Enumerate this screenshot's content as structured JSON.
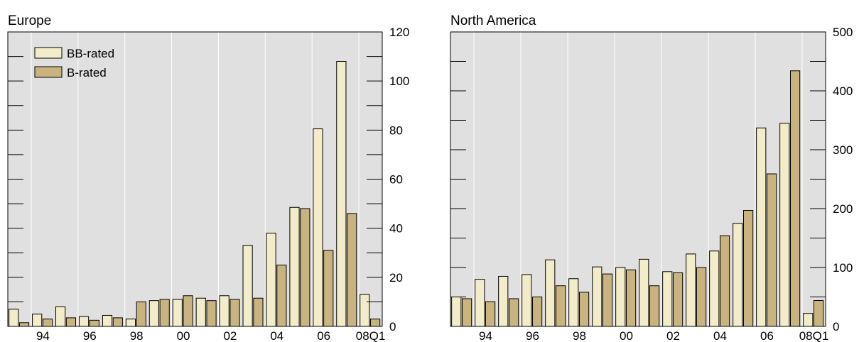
{
  "colors": {
    "bb": "#f2ecc9",
    "b": "#c9b47f",
    "plot_bg": "#e0e0e0",
    "grid": "#ffffff",
    "frame": "#000000"
  },
  "legend": {
    "bb_label": "BB-rated",
    "b_label": "B-rated"
  },
  "chart_data": [
    {
      "type": "bar",
      "title": "Europe",
      "categories": [
        "93",
        "94",
        "95",
        "96",
        "97",
        "98",
        "99",
        "00",
        "01",
        "02",
        "03",
        "04",
        "05",
        "06",
        "07",
        "08Q1"
      ],
      "x_tick_labels": [
        "94",
        "96",
        "98",
        "00",
        "02",
        "04",
        "06",
        "08Q1"
      ],
      "y_ticks": [
        0,
        20,
        40,
        60,
        80,
        100,
        120
      ],
      "ylim": [
        0,
        120
      ],
      "y_axis_side": "right",
      "grid": true,
      "legend_placement": "top-left",
      "series": [
        {
          "name": "BB-rated",
          "values": [
            7,
            5,
            8,
            4,
            4.5,
            3,
            10.5,
            11,
            11.5,
            12.5,
            33,
            38,
            48.5,
            80.5,
            108,
            13
          ]
        },
        {
          "name": "B-rated",
          "values": [
            1.5,
            3,
            3.5,
            2.5,
            3.5,
            10,
            11,
            12.5,
            10.5,
            11,
            11.5,
            25,
            48,
            31,
            46,
            3
          ]
        }
      ]
    },
    {
      "type": "bar",
      "title": "North America",
      "categories": [
        "93",
        "94",
        "95",
        "96",
        "97",
        "98",
        "99",
        "00",
        "01",
        "02",
        "03",
        "04",
        "05",
        "06",
        "07",
        "08Q1"
      ],
      "x_tick_labels": [
        "94",
        "96",
        "98",
        "00",
        "02",
        "04",
        "06",
        "08Q1"
      ],
      "y_ticks": [
        0,
        100,
        200,
        300,
        400,
        500
      ],
      "ylim": [
        0,
        500
      ],
      "y_axis_side": "right",
      "grid": true,
      "series": [
        {
          "name": "BB-rated",
          "values": [
            50,
            80,
            85,
            88,
            113,
            81,
            101,
            100,
            114,
            93,
            123,
            128,
            175,
            337,
            345,
            22
          ]
        },
        {
          "name": "B-rated",
          "values": [
            47,
            42,
            47,
            50,
            69,
            58,
            89,
            96,
            69,
            91,
            100,
            154,
            197,
            259,
            434,
            44
          ]
        }
      ]
    }
  ]
}
